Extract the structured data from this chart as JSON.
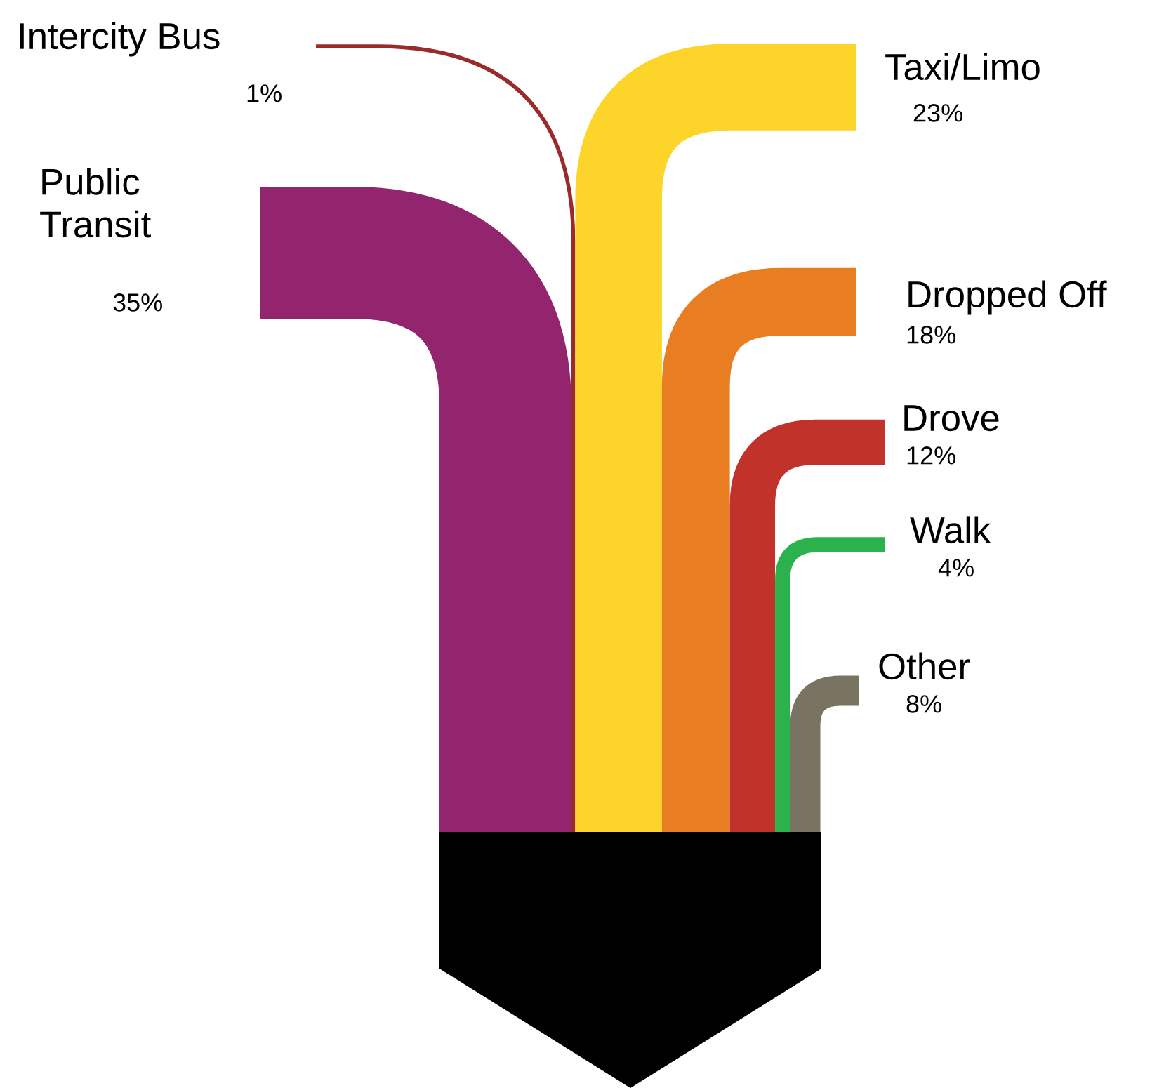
{
  "chart_data": {
    "type": "other",
    "categories": [
      "Public Transit",
      "Intercity Bus",
      "Taxi/Limo",
      "Dropped Off",
      "Drove",
      "Walk",
      "Other"
    ],
    "values": [
      35,
      1,
      23,
      18,
      12,
      4,
      8
    ],
    "value_labels": [
      "35%",
      "1%",
      "23%",
      "18%",
      "12%",
      "4%",
      "8%"
    ],
    "colors": [
      "#93246e",
      "#9b2a2a",
      "#fdd42a",
      "#e87d22",
      "#c0322a",
      "#2bb24c",
      "#787461"
    ]
  }
}
